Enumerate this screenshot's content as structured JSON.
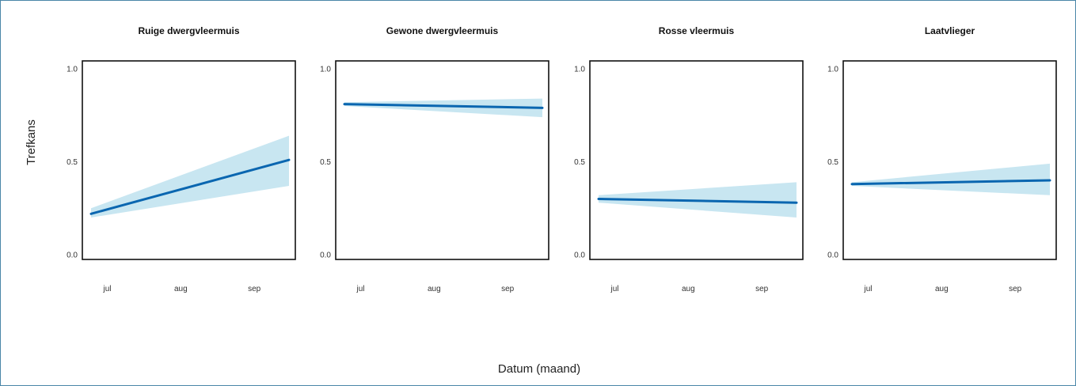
{
  "chart_data": {
    "type": "line",
    "xlabel": "Datum (maand)",
    "ylabel": "Trefkans",
    "ylim": [
      0,
      1
    ],
    "yticks": [
      "0.0",
      "0.5",
      "1.0"
    ],
    "xticks": [
      "jul",
      "aug",
      "sep"
    ],
    "line_color": "#0a66b0",
    "band_color": "#c8e6f1",
    "panels": [
      {
        "title": "Ruige dwergvleermuis",
        "x": [
          "start",
          "end"
        ],
        "y": [
          0.22,
          0.51
        ],
        "ci_low": [
          0.2,
          0.37
        ],
        "ci_high": [
          0.25,
          0.64
        ]
      },
      {
        "title": "Gewone dwergvleermuis",
        "x": [
          "start",
          "end"
        ],
        "y": [
          0.81,
          0.79
        ],
        "ci_low": [
          0.8,
          0.74
        ],
        "ci_high": [
          0.82,
          0.84
        ]
      },
      {
        "title": "Rosse vleermuis",
        "x": [
          "start",
          "end"
        ],
        "y": [
          0.3,
          0.28
        ],
        "ci_low": [
          0.28,
          0.2
        ],
        "ci_high": [
          0.32,
          0.39
        ]
      },
      {
        "title": "Laatvlieger",
        "x": [
          "start",
          "end"
        ],
        "y": [
          0.38,
          0.4
        ],
        "ci_low": [
          0.37,
          0.32
        ],
        "ci_high": [
          0.39,
          0.49
        ]
      }
    ]
  }
}
